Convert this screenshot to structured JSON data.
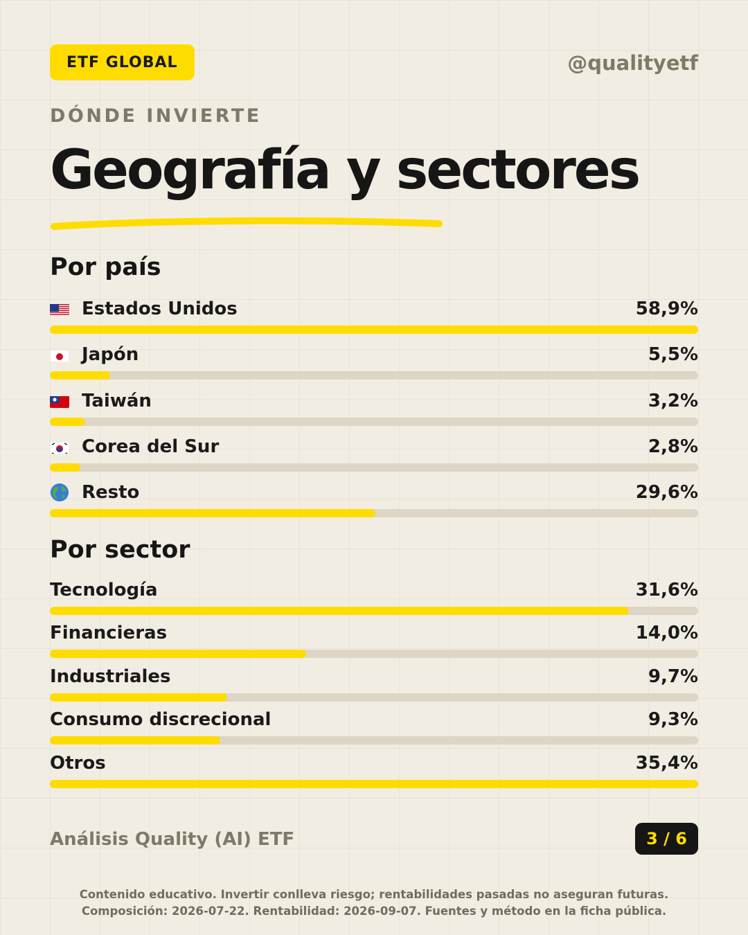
{
  "header": {
    "badge": "ETF GLOBAL",
    "handle": "@qualityetf",
    "kicker": "DÓNDE INVIERTE",
    "title": "Geografía y sectores"
  },
  "colors": {
    "background": "#f2ede2",
    "accent": "#ffdc00",
    "track": "#ddd6c6",
    "muted_text": "#7c7a68",
    "dark": "#161616"
  },
  "chart_data": [
    {
      "type": "bar",
      "title": "Por país",
      "categories": [
        "Estados Unidos",
        "Japón",
        "Taiwán",
        "Corea del Sur",
        "Resto"
      ],
      "values": [
        58.9,
        5.5,
        3.2,
        2.8,
        29.6
      ],
      "value_labels": [
        "58,9%",
        "5,5%",
        "3,2%",
        "2,8%",
        "29,6%"
      ],
      "icons": [
        "flag-us-icon",
        "flag-jp-icon",
        "flag-tw-icon",
        "flag-kr-icon",
        "globe-icon"
      ],
      "xlim": [
        0,
        58.9
      ],
      "orientation": "horizontal"
    },
    {
      "type": "bar",
      "title": "Por sector",
      "categories": [
        "Tecnología",
        "Financieras",
        "Industriales",
        "Consumo discrecional",
        "Otros"
      ],
      "values": [
        31.6,
        14.0,
        9.7,
        9.3,
        35.4
      ],
      "value_labels": [
        "31,6%",
        "14,0%",
        "9,7%",
        "9,3%",
        "35,4%"
      ],
      "xlim": [
        0,
        35.4
      ],
      "orientation": "horizontal"
    }
  ],
  "footer": {
    "brand": "Análisis Quality (AI) ETF",
    "page": "3 / 6",
    "disclaimer_line1": "Contenido educativo. Invertir conlleva riesgo; rentabilidades pasadas no aseguran futuras.",
    "disclaimer_line2": "Composición: 2026-07-22. Rentabilidad: 2026-09-07. Fuentes y método en la ficha pública."
  }
}
